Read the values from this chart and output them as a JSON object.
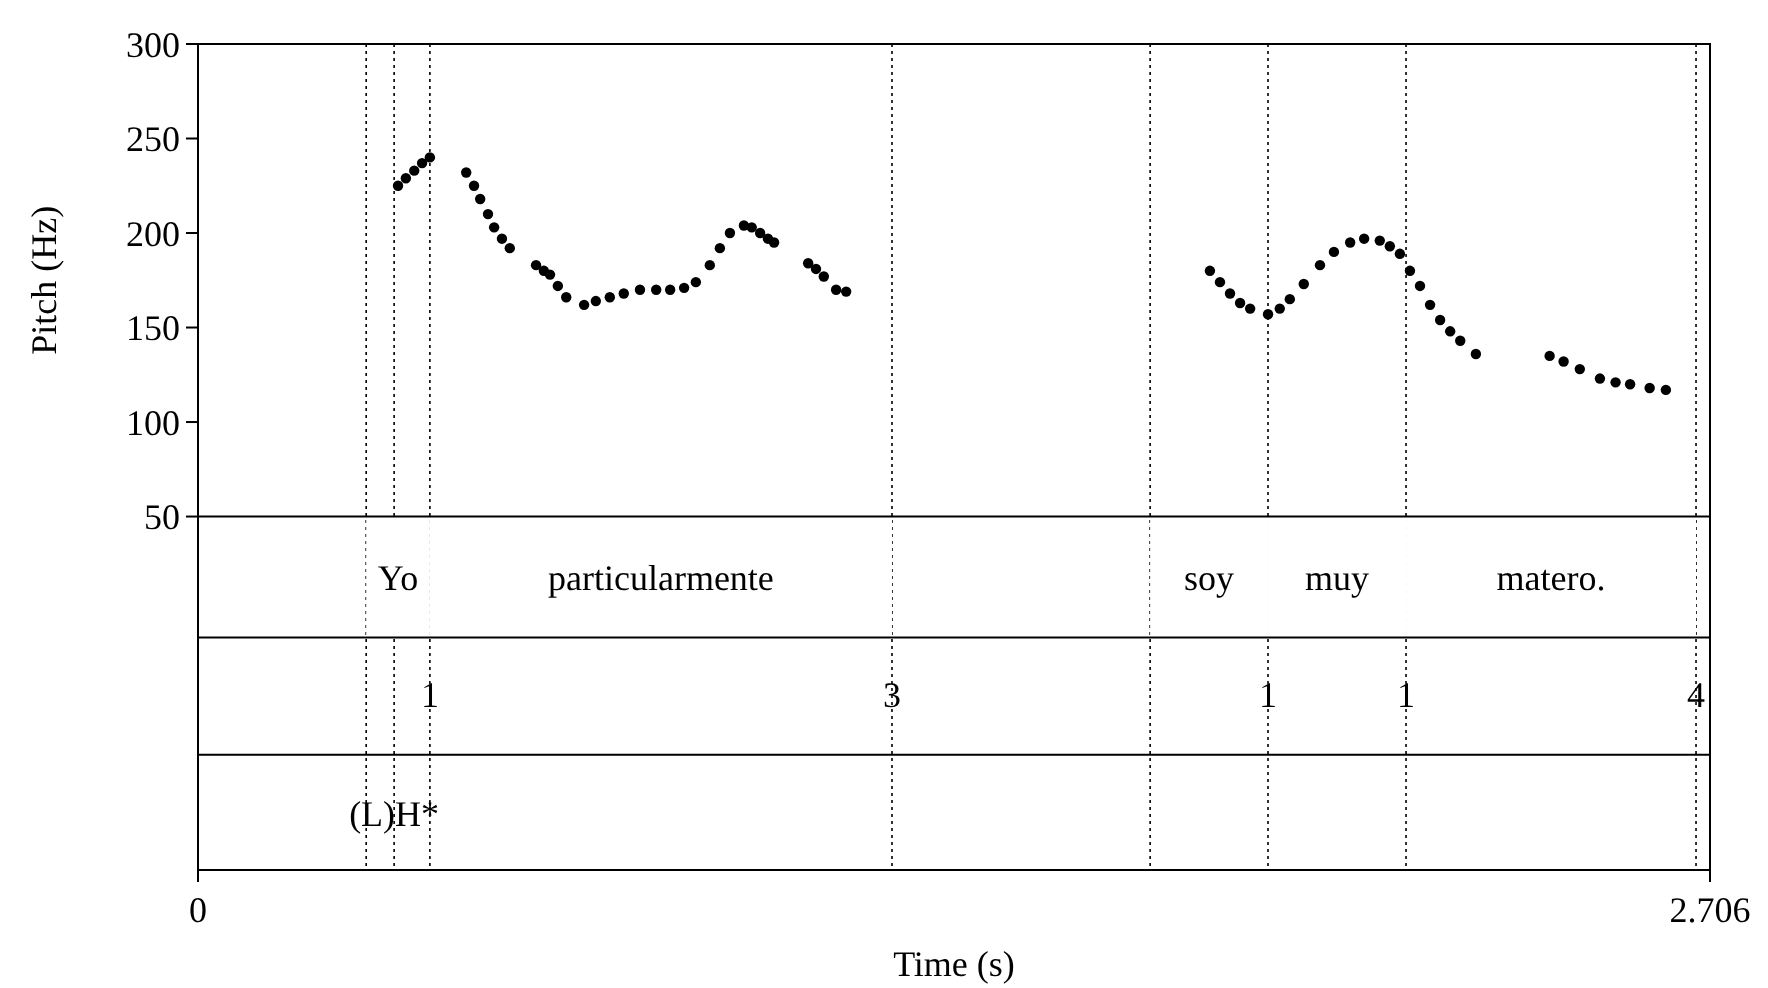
{
  "chart_data": {
    "type": "scatter",
    "xlabel": "Time (s)",
    "ylabel": "Pitch (Hz)",
    "xlim": [
      0,
      2.706
    ],
    "xticks": [
      0,
      2.706
    ],
    "ylim": [
      -137,
      300
    ],
    "yticks": [
      50,
      100,
      150,
      200,
      250,
      300
    ],
    "marker": "circle",
    "grid": false,
    "series": [
      {
        "color": "#000000",
        "x": [
          0.358,
          0.372,
          0.387,
          0.401,
          0.415,
          0.48,
          0.494,
          0.505,
          0.519,
          0.53,
          0.544,
          0.558,
          0.605,
          0.619,
          0.63,
          0.644,
          0.659,
          0.691,
          0.712,
          0.737,
          0.762,
          0.791,
          0.82,
          0.845,
          0.87,
          0.891,
          0.916,
          0.934,
          0.952,
          0.977,
          0.991,
          1.006,
          1.02,
          1.031,
          1.092,
          1.106,
          1.12,
          1.142,
          1.16,
          1.811,
          1.829,
          1.847,
          1.865,
          1.883,
          1.915,
          1.936,
          1.954,
          1.979,
          2.008,
          2.033,
          2.062,
          2.087,
          2.115,
          2.133,
          2.151,
          2.169,
          2.187,
          2.205,
          2.223,
          2.241,
          2.259,
          2.287,
          2.419,
          2.444,
          2.473,
          2.509,
          2.537,
          2.563,
          2.598,
          2.627
        ],
        "values": [
          225,
          229,
          233,
          237,
          240,
          232,
          225,
          218,
          210,
          203,
          197,
          192,
          183,
          180,
          178,
          172,
          166,
          162,
          164,
          166,
          168,
          170,
          170,
          170,
          171,
          174,
          183,
          192,
          200,
          204,
          203,
          200,
          197,
          195,
          184,
          181,
          177,
          170,
          169,
          180,
          174,
          168,
          163,
          160,
          157,
          160,
          165,
          173,
          183,
          190,
          195,
          197,
          196,
          193,
          189,
          180,
          172,
          162,
          154,
          148,
          143,
          136,
          135,
          132,
          128,
          123,
          121,
          120,
          118,
          117
        ]
      }
    ],
    "ref_lines": [
      {
        "axis": "x",
        "value": 0.301,
        "line_style": "dotted"
      },
      {
        "axis": "x",
        "value": 0.351,
        "line_style": "dotted"
      },
      {
        "axis": "x",
        "value": 0.415,
        "line_style": "dotted"
      },
      {
        "axis": "x",
        "value": 1.242,
        "line_style": "dotted"
      },
      {
        "axis": "x",
        "value": 1.704,
        "line_style": "dotted"
      },
      {
        "axis": "x",
        "value": 1.915,
        "line_style": "dotted"
      },
      {
        "axis": "x",
        "value": 2.162,
        "line_style": "dotted"
      },
      {
        "axis": "x",
        "value": 2.681,
        "line_style": "dotted"
      },
      {
        "axis": "y",
        "value": 50,
        "line_style": "solid"
      },
      {
        "axis": "y",
        "value": -14,
        "line_style": "solid"
      },
      {
        "axis": "y",
        "value": -76,
        "line_style": "solid"
      }
    ],
    "bands": [
      {
        "axis": "x",
        "from": 0.301,
        "to": 0.415,
        "label": "Yo",
        "color": "#ffffff"
      },
      {
        "axis": "x",
        "from": 0.415,
        "to": 1.242,
        "label": "particularmente",
        "color": "#ffffff"
      },
      {
        "axis": "x",
        "from": 1.704,
        "to": 1.915,
        "label": "soy",
        "color": "#ffffff"
      },
      {
        "axis": "x",
        "from": 1.915,
        "to": 2.162,
        "label": "muy",
        "color": "#ffffff"
      },
      {
        "axis": "x",
        "from": 2.162,
        "to": 2.681,
        "label": "matero.",
        "color": "#ffffff"
      }
    ],
    "annotations": [
      {
        "text": "1",
        "x": 0.415,
        "y": -44
      },
      {
        "text": "3",
        "x": 1.242,
        "y": -44
      },
      {
        "text": "1",
        "x": 1.915,
        "y": -44
      },
      {
        "text": "1",
        "x": 2.162,
        "y": -44
      },
      {
        "text": "4",
        "x": 2.681,
        "y": -44
      },
      {
        "text": "(L)H*",
        "x": 0.351,
        "y": -107
      }
    ]
  }
}
